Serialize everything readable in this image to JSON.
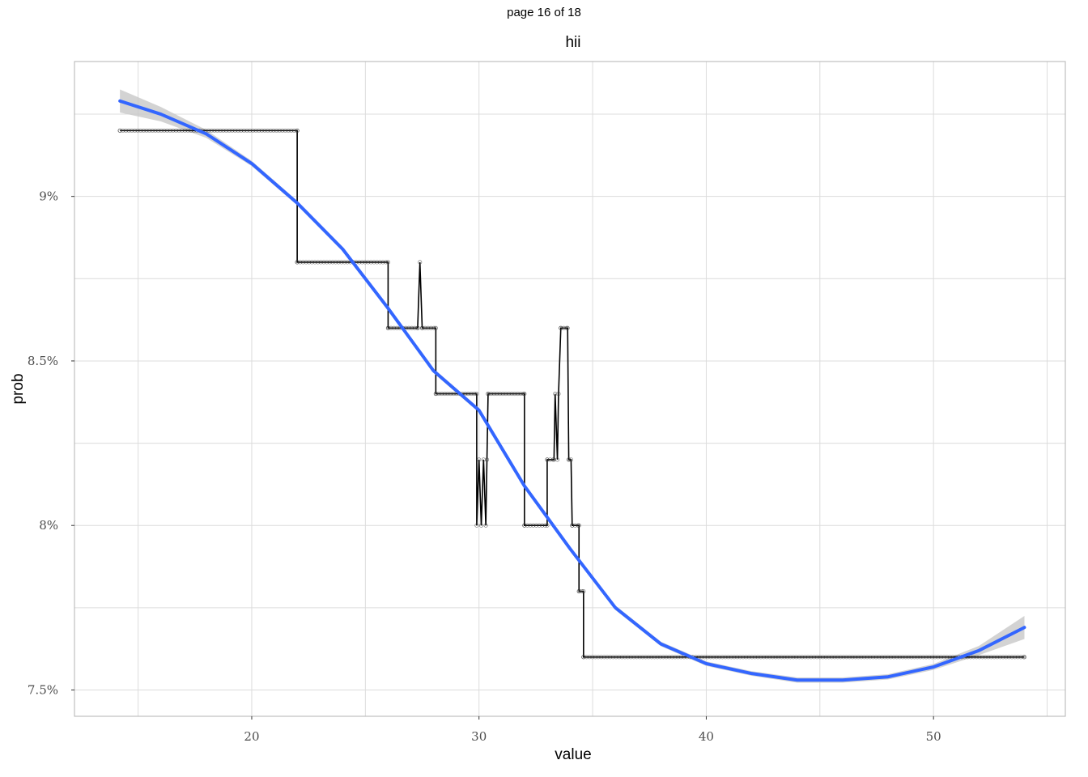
{
  "page_label": "page 16 of 18",
  "colors": {
    "step": "#000000",
    "smooth": "#3366ff",
    "ribbon": "#c8c8c8",
    "grid": "#dcdcdc",
    "panel_border": "#b3b3b3"
  },
  "chart_data": {
    "type": "line",
    "title": "hii",
    "xlabel": "value",
    "ylabel": "prob",
    "xlim": [
      12.2,
      55.8
    ],
    "ylim": [
      0.0742,
      0.0941
    ],
    "x_ticks": [
      20,
      30,
      40,
      50
    ],
    "x_tick_labels": [
      "20",
      "30",
      "40",
      "50"
    ],
    "x_minor_ticks": [
      15,
      25,
      35,
      45,
      55
    ],
    "y_ticks": [
      0.075,
      0.08,
      0.085,
      0.09
    ],
    "y_tick_labels": [
      "7.5%",
      "8%",
      "8.5%",
      "9%"
    ],
    "y_minor_ticks": [
      0.0775,
      0.0825,
      0.0875,
      0.0925
    ],
    "grid": true,
    "series": [
      {
        "kind": "step",
        "points": [
          [
            14.2,
            0.092
          ],
          [
            22.0,
            0.092
          ],
          [
            22.0,
            0.088
          ],
          [
            26.0,
            0.088
          ],
          [
            26.0,
            0.086
          ],
          [
            27.3,
            0.086
          ],
          [
            27.4,
            0.088
          ],
          [
            27.5,
            0.086
          ],
          [
            28.1,
            0.086
          ],
          [
            28.1,
            0.084
          ],
          [
            29.9,
            0.084
          ],
          [
            29.9,
            0.08
          ],
          [
            30.0,
            0.082
          ],
          [
            30.1,
            0.08
          ],
          [
            30.2,
            0.082
          ],
          [
            30.3,
            0.08
          ],
          [
            30.35,
            0.082
          ],
          [
            30.4,
            0.084
          ],
          [
            32.0,
            0.084
          ],
          [
            32.0,
            0.08
          ],
          [
            33.0,
            0.08
          ],
          [
            33.0,
            0.082
          ],
          [
            33.3,
            0.082
          ],
          [
            33.35,
            0.084
          ],
          [
            33.45,
            0.082
          ],
          [
            33.5,
            0.084
          ],
          [
            33.6,
            0.086
          ],
          [
            33.9,
            0.086
          ],
          [
            33.95,
            0.082
          ],
          [
            34.05,
            0.082
          ],
          [
            34.1,
            0.08
          ],
          [
            34.4,
            0.08
          ],
          [
            34.4,
            0.078
          ],
          [
            34.6,
            0.078
          ],
          [
            34.6,
            0.076
          ],
          [
            54.0,
            0.076
          ]
        ]
      },
      {
        "kind": "smooth",
        "points": [
          [
            14.2,
            0.0929
          ],
          [
            16.0,
            0.0925
          ],
          [
            18.0,
            0.0919
          ],
          [
            20.0,
            0.091
          ],
          [
            22.0,
            0.0898
          ],
          [
            24.0,
            0.0884
          ],
          [
            26.0,
            0.0866
          ],
          [
            28.0,
            0.0847
          ],
          [
            30.0,
            0.0835
          ],
          [
            32.0,
            0.0812
          ],
          [
            34.0,
            0.0793
          ],
          [
            36.0,
            0.0775
          ],
          [
            38.0,
            0.0764
          ],
          [
            40.0,
            0.0758
          ],
          [
            42.0,
            0.0755
          ],
          [
            44.0,
            0.0753
          ],
          [
            46.0,
            0.0753
          ],
          [
            48.0,
            0.0754
          ],
          [
            50.0,
            0.0757
          ],
          [
            52.0,
            0.0762
          ],
          [
            54.0,
            0.0769
          ]
        ],
        "ribbon_halfwidth": [
          0.00035,
          0.00022,
          0.00012,
          8e-05,
          7e-05,
          7e-05,
          7e-05,
          7e-05,
          7e-05,
          7e-05,
          7e-05,
          7e-05,
          7e-05,
          7e-05,
          7e-05,
          8e-05,
          8e-05,
          8e-05,
          9e-05,
          0.00014,
          0.00035
        ]
      }
    ]
  }
}
